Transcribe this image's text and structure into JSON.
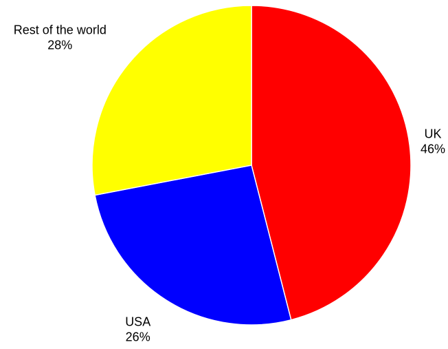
{
  "chart_data": {
    "type": "pie",
    "title": "",
    "start_angle_deg": 0,
    "direction": "clockwise",
    "slices": [
      {
        "label": "UK",
        "value": 46,
        "value_label": "46%",
        "color": "#ff0000"
      },
      {
        "label": "USA",
        "value": 26,
        "value_label": "26%",
        "color": "#0000ff"
      },
      {
        "label": "Rest of the world",
        "value": 28,
        "value_label": "28%",
        "color": "#ffff00"
      }
    ]
  }
}
